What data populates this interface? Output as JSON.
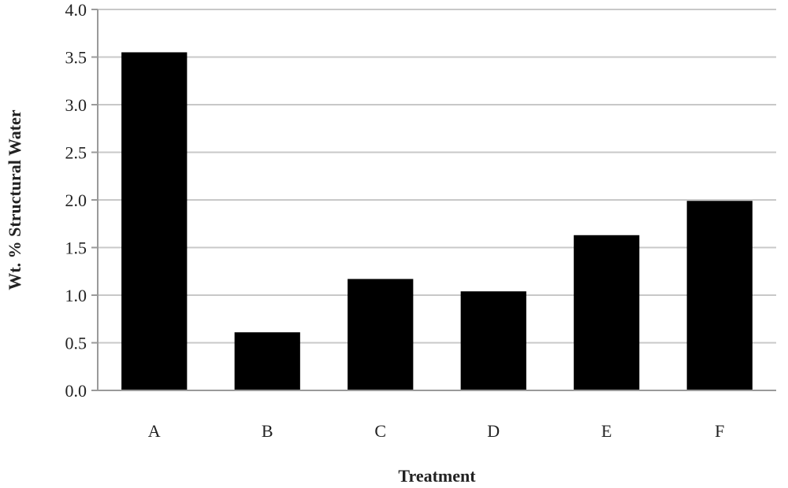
{
  "chart_data": {
    "type": "bar",
    "categories": [
      "A",
      "B",
      "C",
      "D",
      "E",
      "F"
    ],
    "values": [
      3.55,
      0.61,
      1.17,
      1.04,
      1.63,
      1.99
    ],
    "xlabel": "Treatment",
    "ylabel": "Wt. % Structural Water",
    "ylim": [
      0,
      4.0
    ],
    "yticks": [
      "0.0",
      "0.5",
      "1.0",
      "1.5",
      "2.0",
      "2.5",
      "3.0",
      "3.5",
      "4.0"
    ],
    "grid": true,
    "legend": "none",
    "bar_color": "#000000"
  }
}
